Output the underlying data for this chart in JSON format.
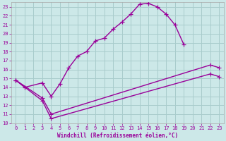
{
  "xlabel": "Windchill (Refroidissement éolien,°C)",
  "bg_color": "#cce8e8",
  "grid_color": "#a8cccc",
  "line_color": "#990099",
  "spine_color": "#aaaaaa",
  "xlim": [
    -0.5,
    23.5
  ],
  "ylim": [
    10,
    23.5
  ],
  "xticks": [
    0,
    1,
    2,
    3,
    4,
    5,
    6,
    7,
    8,
    9,
    10,
    11,
    12,
    13,
    14,
    15,
    16,
    17,
    18,
    19,
    20,
    21,
    22,
    23
  ],
  "yticks": [
    10,
    11,
    12,
    13,
    14,
    15,
    16,
    17,
    18,
    19,
    20,
    21,
    22,
    23
  ],
  "line1_x": [
    0,
    1,
    3,
    4,
    5,
    6,
    7,
    8,
    9,
    10,
    11,
    12,
    13,
    14,
    15,
    16,
    17,
    18,
    19
  ],
  "line1_y": [
    14.8,
    14.0,
    14.5,
    13.0,
    14.4,
    16.2,
    17.5,
    18.0,
    19.2,
    19.5,
    20.5,
    21.3,
    22.2,
    23.3,
    23.4,
    23.0,
    22.2,
    21.0,
    18.8
  ],
  "line2_x": [
    0,
    3,
    4,
    22,
    23
  ],
  "line2_y": [
    14.8,
    12.8,
    11.0,
    16.5,
    16.2
  ],
  "line3_x": [
    0,
    3,
    4,
    22,
    23
  ],
  "line3_y": [
    14.8,
    12.5,
    10.5,
    15.5,
    15.2
  ],
  "tick_fontsize": 5,
  "xlabel_fontsize": 5.5,
  "linewidth": 1.0,
  "markersize": 3
}
